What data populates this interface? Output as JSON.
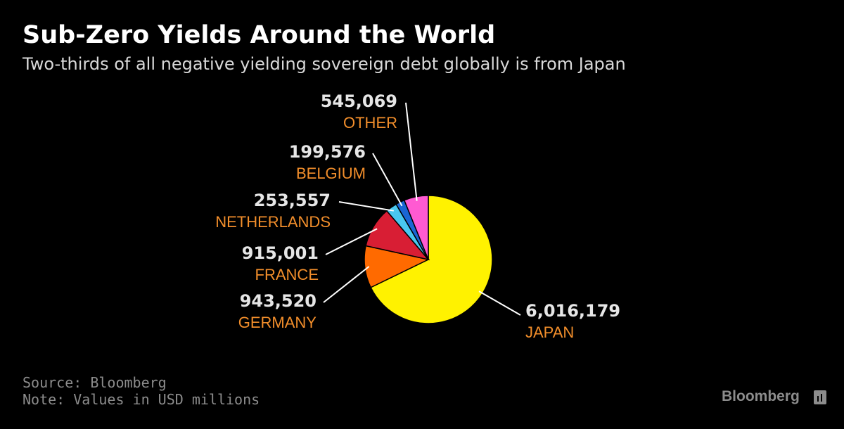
{
  "header": {
    "title": "Sub-Zero Yields Around the World",
    "subtitle": "Two-thirds of all negative yielding sovereign debt globally is from Japan"
  },
  "footer": {
    "source": "Source: Bloomberg",
    "note": "Note: Values in USD millions",
    "brand": "Bloomberg"
  },
  "chart_data": {
    "type": "pie",
    "title": "Sub-Zero Yields Around the World",
    "subtitle": "Two-thirds of all negative yielding sovereign debt globally is from Japan",
    "slices": [
      {
        "label": "JAPAN",
        "value": 6016179,
        "value_label": "6,016,179",
        "color": "#fff200"
      },
      {
        "label": "GERMANY",
        "value": 943520,
        "value_label": "943,520",
        "color": "#ff6a00"
      },
      {
        "label": "FRANCE",
        "value": 915001,
        "value_label": "915,001",
        "color": "#d81e34"
      },
      {
        "label": "NETHERLANDS",
        "value": 253557,
        "value_label": "253,557",
        "color": "#49c8f0"
      },
      {
        "label": "BELGIUM",
        "value": 199576,
        "value_label": "199,576",
        "color": "#1a66d4"
      },
      {
        "label": "OTHER",
        "value": 545069,
        "value_label": "545,069",
        "color": "#ff5ad2"
      }
    ],
    "label_color": "#f28e2b",
    "value_color": "#e6e6e6"
  }
}
